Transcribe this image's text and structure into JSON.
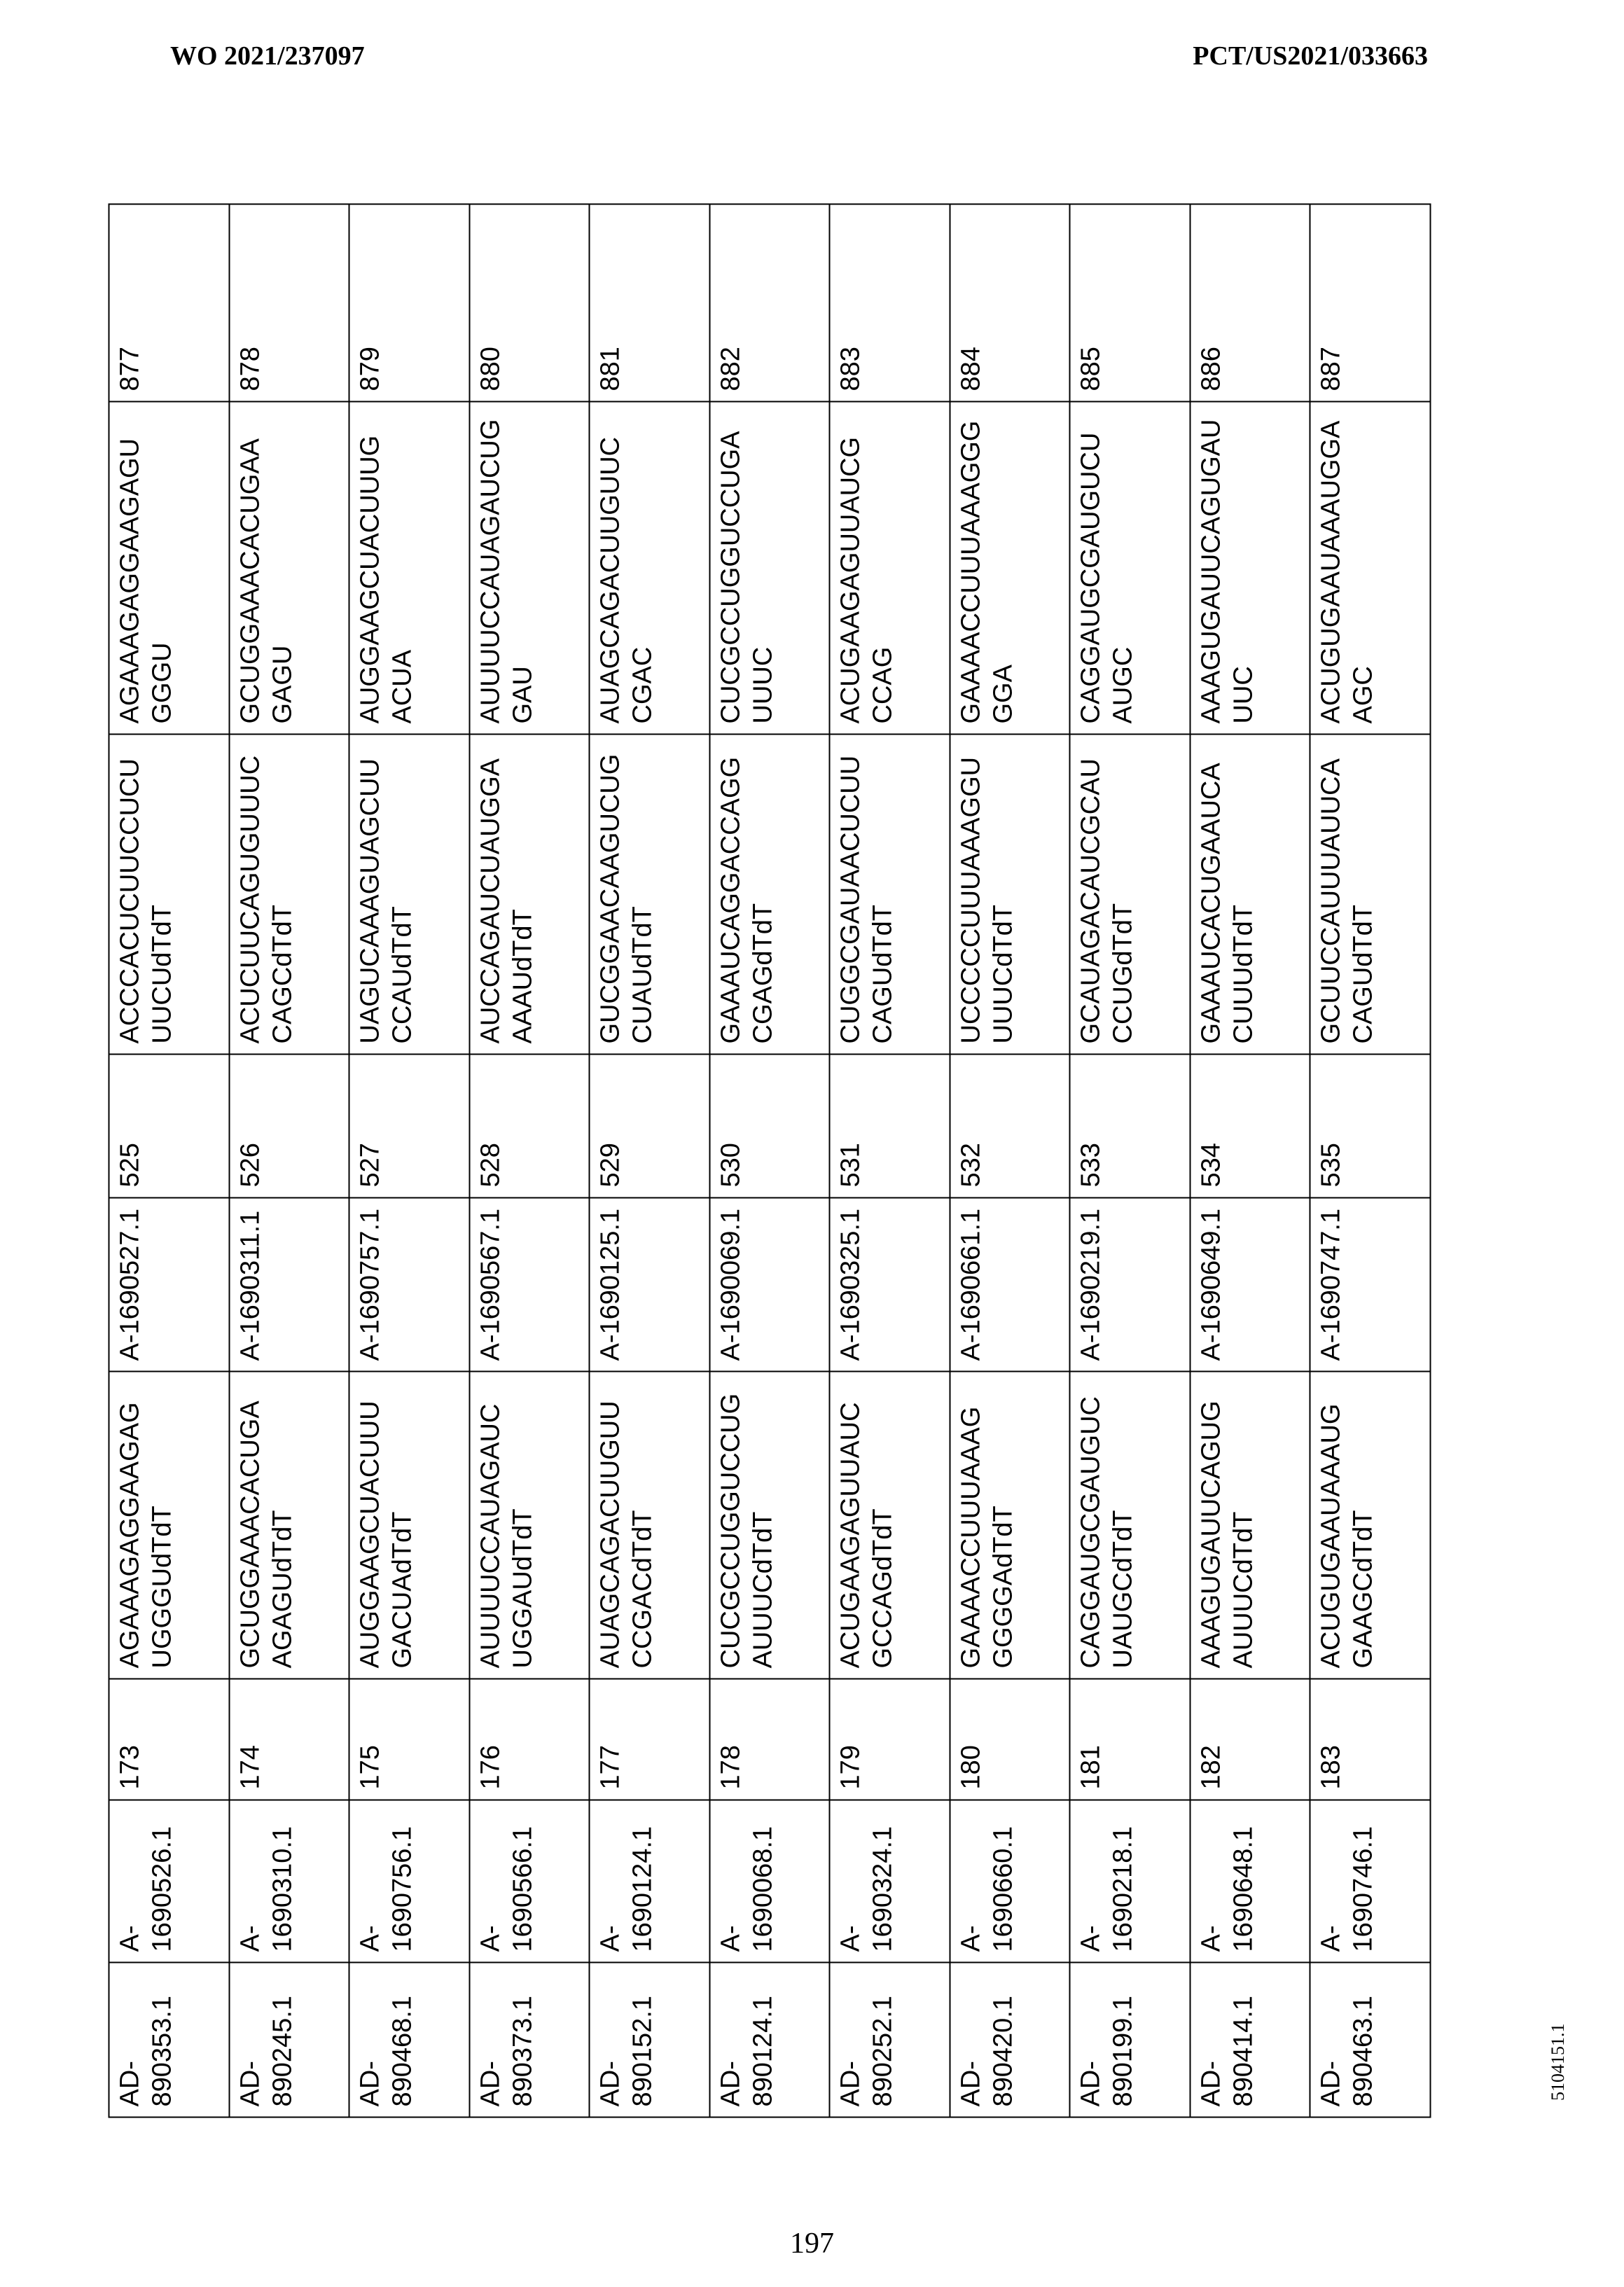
{
  "header": {
    "left": "WO 2021/237097",
    "right": "PCT/US2021/033663"
  },
  "table": {
    "rows": [
      {
        "duplex_id": "AD-890353.1",
        "sense_id": "A-1690526.1",
        "sense_seq_id": "173",
        "sense_seq": "AGAAAGAGGAAGAGUGGGUdTdT",
        "antisense_id": "A-1690527.1",
        "antisense_seq_id": "525",
        "antisense_seq": "ACCCACUCUUCCUCUUUCUdTdT",
        "target_seq": "AGAAAGAGGAAGAGUGGGU",
        "target_seq_id": "877"
      },
      {
        "duplex_id": "AD-890245.1",
        "sense_id": "A-1690310.1",
        "sense_seq_id": "174",
        "sense_seq": "GCUGGAAACACUGAAGAGUdTdT",
        "antisense_id": "A-1690311.1",
        "antisense_seq_id": "526",
        "antisense_seq": "ACUCUUCAGUGUUUCCAGCdTdT",
        "target_seq": "GCUGGAAACACUGAAGAGU",
        "target_seq_id": "878"
      },
      {
        "duplex_id": "AD-890468.1",
        "sense_id": "A-1690756.1",
        "sense_seq_id": "175",
        "sense_seq": "AUGGAAGCUACUUUGACUAdTdT",
        "antisense_id": "A-1690757.1",
        "antisense_seq_id": "527",
        "antisense_seq": "UAGUCAAAGUAGCUUCCAUdTdT",
        "target_seq": "AUGGAAGCUACUUUGACUA",
        "target_seq_id": "879"
      },
      {
        "duplex_id": "AD-890373.1",
        "sense_id": "A-1690566.1",
        "sense_seq_id": "176",
        "sense_seq": "AUUUUCCAUAGAUCUGGAUdTdT",
        "antisense_id": "A-1690567.1",
        "antisense_seq_id": "528",
        "antisense_seq": "AUCCAGAUCUAUGGAAAAUdTdT",
        "target_seq": "AUUUUCCAUAGAUCUGGAU",
        "target_seq_id": "880"
      },
      {
        "duplex_id": "AD-890152.1",
        "sense_id": "A-1690124.1",
        "sense_seq_id": "177",
        "sense_seq": "AUAGCAGACUUGUUCCGACdTdT",
        "antisense_id": "A-1690125.1",
        "antisense_seq_id": "529",
        "antisense_seq": "GUCGGAACAAGUCUGCUAUdTdT",
        "target_seq": "AUAGCAGACUUGUUCCGAC",
        "target_seq_id": "881"
      },
      {
        "duplex_id": "AD-890124.1",
        "sense_id": "A-1690068.1",
        "sense_seq_id": "178",
        "sense_seq": "CUCGCCUGGUCCUGAUUUCdTdT",
        "antisense_id": "A-1690069.1",
        "antisense_seq_id": "530",
        "antisense_seq": "GAAAUCAGGACCAGGCGAGdTdT",
        "target_seq": "CUCGCCUGGUCCUGAUUUC",
        "target_seq_id": "882"
      },
      {
        "duplex_id": "AD-890252.1",
        "sense_id": "A-1690324.1",
        "sense_seq_id": "179",
        "sense_seq": "ACUGAAGAGUUAUCGCCAGdTdT",
        "antisense_id": "A-1690325.1",
        "antisense_seq_id": "531",
        "antisense_seq": "CUGGCGAUAACUCUUCAGUdTdT",
        "target_seq": "ACUGAAGAGUUAUCGCCAG",
        "target_seq_id": "883"
      },
      {
        "duplex_id": "AD-890420.1",
        "sense_id": "A-1690660.1",
        "sense_seq_id": "180",
        "sense_seq": "GAAAACCUUUAAAGGGGGAdTdT",
        "antisense_id": "A-1690661.1",
        "antisense_seq_id": "532",
        "antisense_seq": "UCCCCCUUUAAAGGUUUUCdTdT",
        "target_seq": "GAAAACCUUUAAAGGGGGA",
        "target_seq_id": "884"
      },
      {
        "duplex_id": "AD-890199.1",
        "sense_id": "A-1690218.1",
        "sense_seq_id": "181",
        "sense_seq": "CAGGAUGCGAUGUCUAUGCdTdT",
        "antisense_id": "A-1690219.1",
        "antisense_seq_id": "533",
        "antisense_seq": "GCAUAGACAUCGCAUCCUGdTdT",
        "target_seq": "CAGGAUGCGAUGUCUAUGC",
        "target_seq_id": "885"
      },
      {
        "duplex_id": "AD-890414.1",
        "sense_id": "A-1690648.1",
        "sense_seq_id": "182",
        "sense_seq": "AAAGUGAUUCAGUGAUUUCdTdT",
        "antisense_id": "A-1690649.1",
        "antisense_seq_id": "534",
        "antisense_seq": "GAAAUCACUGAAUCACUUUdTdT",
        "target_seq": "AAAGUGAUUCAGUGAUUUC",
        "target_seq_id": "886"
      },
      {
        "duplex_id": "AD-890463.1",
        "sense_id": "A-1690746.1",
        "sense_seq_id": "183",
        "sense_seq": "ACUGUGAAUAAAUGGAAGCdTdT",
        "antisense_id": "A-1690747.1",
        "antisense_seq_id": "535",
        "antisense_seq": "GCUUCCAUUUAUUCACAGUdTdT",
        "target_seq": "ACUGUGAAUAAAUGGAAGC",
        "target_seq_id": "887"
      }
    ]
  },
  "page_number": "197",
  "footer_code": "5104151.1"
}
